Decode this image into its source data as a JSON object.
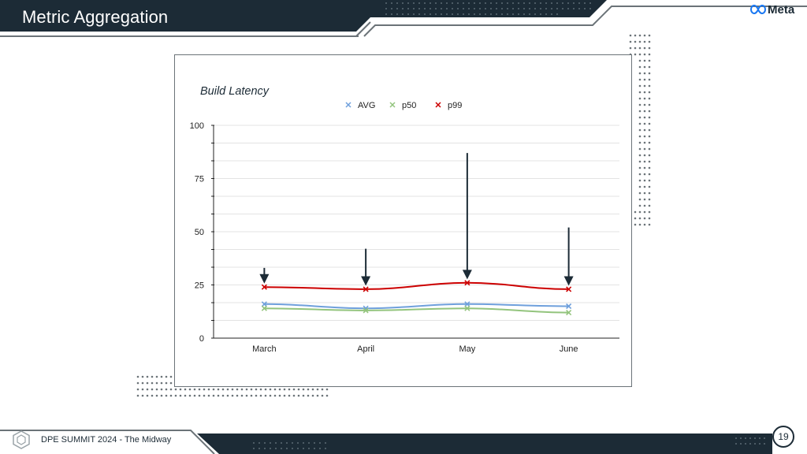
{
  "slide": {
    "title": "Metric Aggregation",
    "brand": "Meta",
    "footer": "DPE SUMMIT 2024 - The Midway",
    "page_number": "19"
  },
  "colors": {
    "dark": "#1c2b36",
    "avg": "#6fa0dc",
    "p50": "#93c47d",
    "p99": "#cc0000",
    "arrow": "#1c2b36"
  },
  "chart_data": {
    "type": "line",
    "title": "Build Latency",
    "categories": [
      "March",
      "April",
      "May",
      "June"
    ],
    "series": [
      {
        "name": "AVG",
        "values": [
          16,
          14,
          16,
          15
        ]
      },
      {
        "name": "p50",
        "values": [
          14,
          13,
          14,
          12
        ]
      },
      {
        "name": "p99",
        "values": [
          24,
          23,
          26,
          23
        ]
      }
    ],
    "ylim": [
      0,
      100
    ],
    "yticks": [
      0,
      25,
      50,
      75,
      100
    ],
    "grid": true,
    "legend_position": "top",
    "annotations": [
      {
        "type": "arrow",
        "category": "March",
        "from": 33,
        "to": 26
      },
      {
        "type": "arrow",
        "category": "April",
        "from": 42,
        "to": 25
      },
      {
        "type": "arrow",
        "category": "May",
        "from": 87,
        "to": 28
      },
      {
        "type": "arrow",
        "category": "June",
        "from": 52,
        "to": 25
      }
    ]
  }
}
